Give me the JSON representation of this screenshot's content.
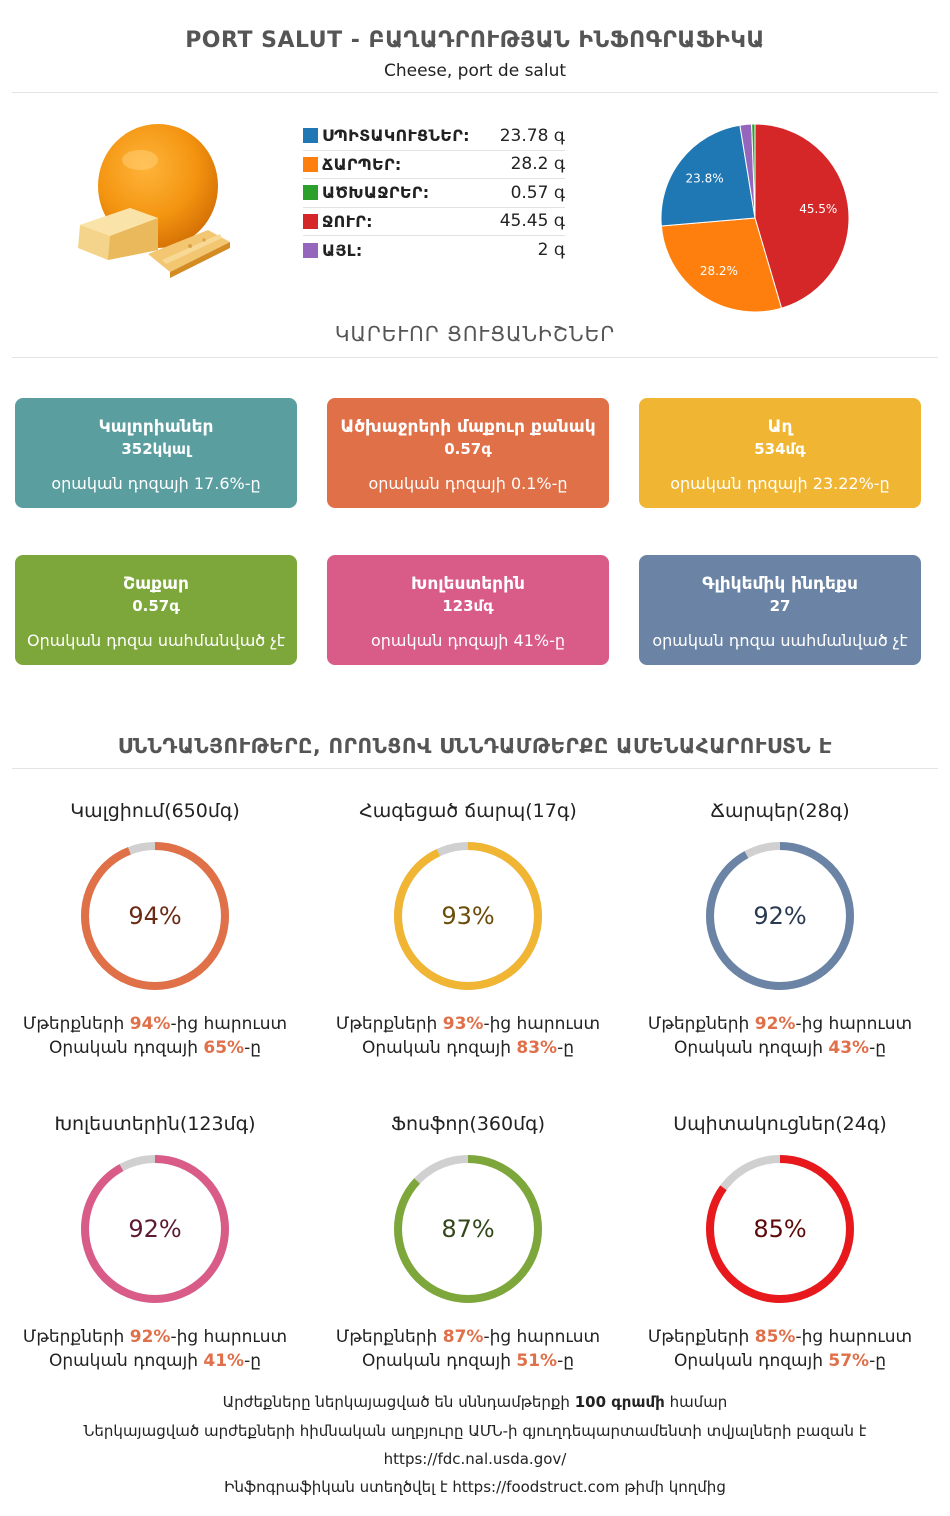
{
  "header": {
    "title": "PORT SALUT - ԲԱՂԱԴՐՈՒԹՅԱՆ ԻՆՖՈԳՐԱՖԻԿԱ",
    "subtitle": "Cheese, port de salut"
  },
  "macros": [
    {
      "label": "ՍՊԻՏԱԿՈՒՑՆԵՐ:",
      "value": "23.78 գ",
      "color": "#1f77b4"
    },
    {
      "label": "ՃԱՐՊԵՐ:",
      "value": "28.2 գ",
      "color": "#ff7f0e"
    },
    {
      "label": "ԱԾԽԱՋՐԵՐ:",
      "value": "0.57 գ",
      "color": "#2ca02c"
    },
    {
      "label": "ՋՈՒՐ:",
      "value": "45.45 գ",
      "color": "#d62728"
    },
    {
      "label": "ԱՅԼ:",
      "value": "2 գ",
      "color": "#9467bd"
    }
  ],
  "chart_data": {
    "type": "pie",
    "slices": [
      {
        "label": "ՋՈՒՐ",
        "value": 45.45,
        "percent_label": "45.5%",
        "color": "#d62728"
      },
      {
        "label": "ՃԱՐՊԵՐ",
        "value": 28.2,
        "percent_label": "28.2%",
        "color": "#ff7f0e"
      },
      {
        "label": "ՍՊԻՏԱԿՈՒՑՆԵՐ",
        "value": 23.78,
        "percent_label": "23.8%",
        "color": "#1f77b4"
      },
      {
        "label": "ԱՅԼ",
        "value": 2,
        "percent_label": "",
        "color": "#9467bd"
      },
      {
        "label": "ԱԾԽԱՋՐԵՐ",
        "value": 0.57,
        "percent_label": "",
        "color": "#2ca02c"
      }
    ]
  },
  "key_indicators": {
    "title": "ԿԱՐԵՒՈՐ ՑՈՒՑԱՆԻՇՆԵՐ",
    "cards": [
      {
        "name": "Կալորիաներ",
        "value": "352կկալ",
        "note": "օրական դոզայի 17.6%-ը",
        "color": "#5b9ea0"
      },
      {
        "name": "Ածխաջրերի մաքուր քանակ",
        "value": "0.57գ",
        "note": "օրական դոզայի 0.1%-ը",
        "color": "#e07048"
      },
      {
        "name": "Աղ",
        "value": "534մգ",
        "note": "օրական դոզայի 23.22%-ը",
        "color": "#f0b633"
      },
      {
        "name": "Շաքար",
        "value": "0.57գ",
        "note": "Օրական դոզա սահմանված չէ",
        "color": "#7da73a"
      },
      {
        "name": "Խոլեստերին",
        "value": "123մգ",
        "note": "օրական դոզայի 41%-ը",
        "color": "#d95b88"
      },
      {
        "name": "Գլիկեմիկ ինդեքս",
        "value": "27",
        "note": "օրական դոզա սահմանված չէ",
        "color": "#6b84a6"
      }
    ]
  },
  "rich_nutrients": {
    "title": "ՍՆՆԴԱՆՅՈՒԹԵՐԸ, ՈՐՈՆՑՈՎ ՍՆՆԴԱՄԹԵՐՔԸ ԱՄԵՆԱՀԱՐՈՒՍՏՆ Է",
    "line1_prefix": "Մթերքների ",
    "line1_suffix": "-ից հարուստ",
    "line2_prefix": "Օրական դոզայի ",
    "line2_suffix": "-ը",
    "items": [
      {
        "title": "Կալցիում(650մգ)",
        "percent": "94%",
        "fraction": 0.94,
        "daily": "65%",
        "color": "#e07048",
        "text_color": "#6b2a14"
      },
      {
        "title": "Հագեցած ճարպ(17գ)",
        "percent": "93%",
        "fraction": 0.93,
        "daily": "83%",
        "color": "#f0b633",
        "text_color": "#6b4d0a"
      },
      {
        "title": "Ճարպեր(28գ)",
        "percent": "92%",
        "fraction": 0.92,
        "daily": "43%",
        "color": "#6b84a6",
        "text_color": "#2a3a52"
      },
      {
        "title": "Խոլեստերին(123մգ)",
        "percent": "92%",
        "fraction": 0.92,
        "daily": "41%",
        "color": "#d95b88",
        "text_color": "#5e1a34"
      },
      {
        "title": "Ֆոսֆոր(360մգ)",
        "percent": "87%",
        "fraction": 0.87,
        "daily": "51%",
        "color": "#7da73a",
        "text_color": "#33481a"
      },
      {
        "title": "Սպիտակուցներ(24գ)",
        "percent": "85%",
        "fraction": 0.85,
        "daily": "57%",
        "color": "#e8191d",
        "text_color": "#5e0a0b"
      }
    ]
  },
  "footer": {
    "line1_prefix": "Արժեքները ներկայացված են սննդամթերքի ",
    "line1_bold": "100 գրամի",
    "line1_suffix": " համար",
    "line2": "Ներկայացված արժեքների հիմնական աղբյուրը ԱՄՆ-ի գյուղդեպարտամենտի տվյալների բազան է",
    "line3": "https://fdc.nal.usda.gov/",
    "line4_prefix": "Ինֆոգրաֆիկան ստեղծվել է ",
    "line4_link": "https://foodstruct.com",
    "line4_suffix": " թիմի կողմից"
  }
}
